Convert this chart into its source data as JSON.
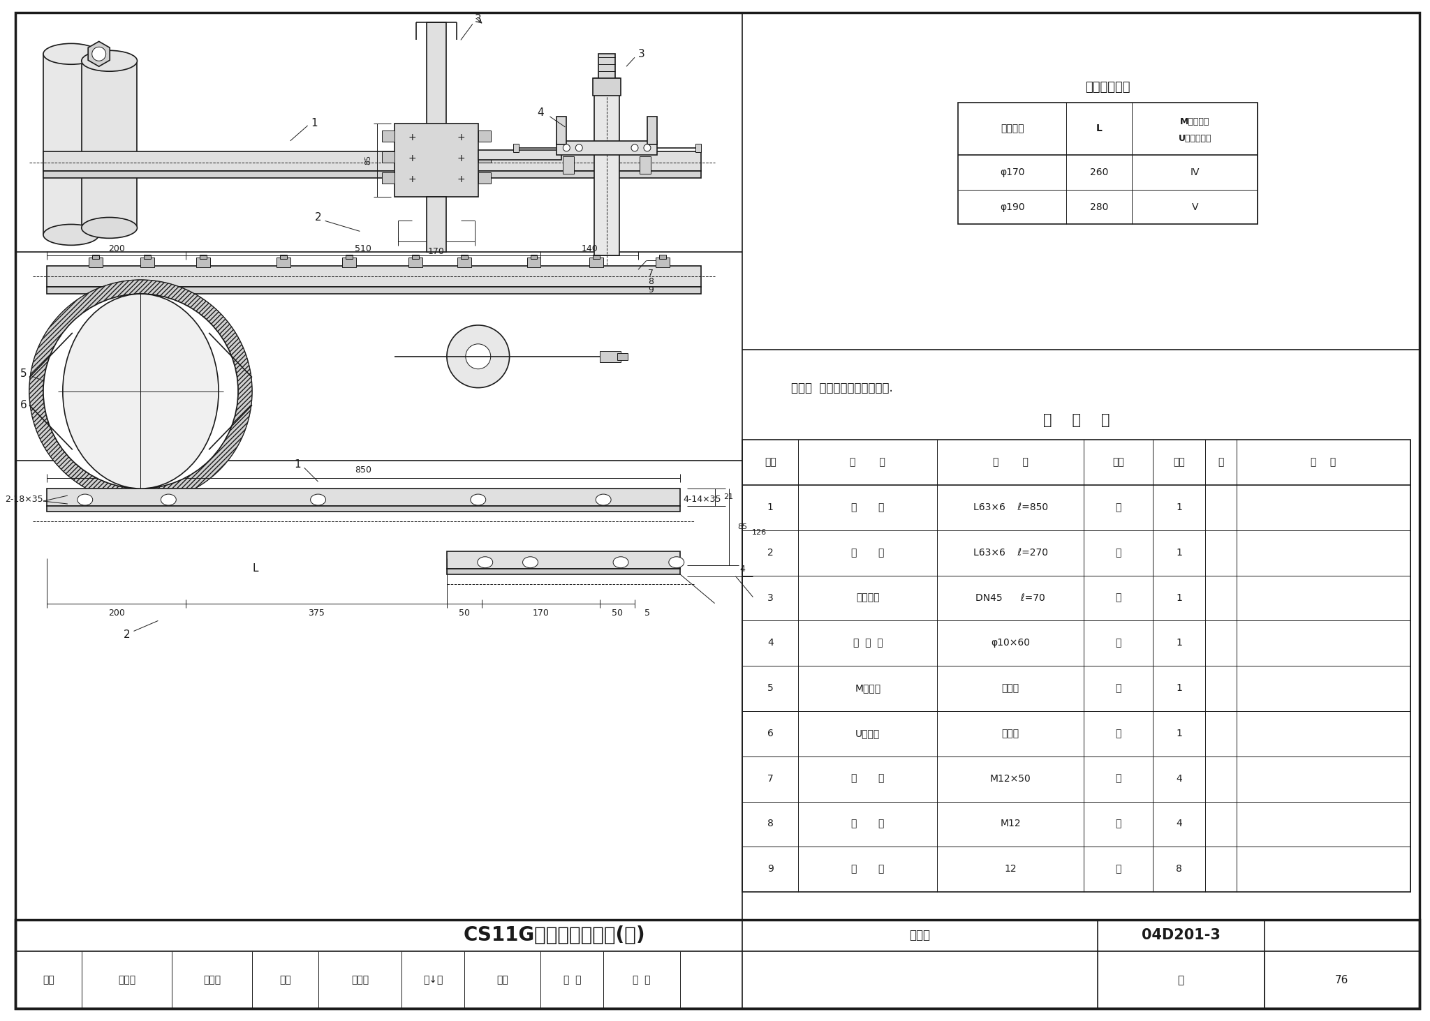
{
  "title": "CS11G操动机构安装图(二)",
  "fig_num": "04D201-3",
  "page": "76",
  "bg_color": "#ffffff",
  "line_color": "#1a1a1a",
  "table_title": "尺寸及型号表",
  "table_headers": [
    "电杆梢径",
    "L",
    "M形抱箍及\nU形抱箍型号"
  ],
  "table_rows": [
    [
      "φ170",
      "260",
      "IV"
    ],
    [
      "φ190",
      "280",
      "V"
    ]
  ],
  "material_table_title": "材    料    表",
  "material_headers": [
    "编号",
    "名       称",
    "规       格",
    "单位",
    "数量",
    "页",
    "备       注"
  ],
  "material_rows": [
    [
      "1",
      "角       钢",
      "L63×6    ℓ=850",
      "根",
      "1",
      "",
      ""
    ],
    [
      "2",
      "角       钢",
      "L63×6    ℓ=270",
      "根",
      "1",
      "",
      ""
    ],
    [
      "3",
      "无缝钢管",
      "DN45      ℓ=70",
      "根",
      "1",
      "",
      ""
    ],
    [
      "4",
      "圆  锥  销",
      "φ10×60",
      "个",
      "1",
      "",
      ""
    ],
    [
      "5",
      "M形抱铁",
      "见上表",
      "个",
      "1",
      "",
      ""
    ],
    [
      "6",
      "U形抱箍",
      "见上表",
      "付",
      "1",
      "",
      ""
    ],
    [
      "7",
      "螺       栓",
      "M12×50",
      "个",
      "4",
      "",
      ""
    ],
    [
      "8",
      "螺       母",
      "M12",
      "个",
      "4",
      "",
      ""
    ],
    [
      "9",
      "垫       圈",
      "12",
      "个",
      "8",
      "",
      ""
    ]
  ],
  "note": "附注：  各零件加工后应热镀锌.",
  "footer_items": [
    "审核",
    "吴他兴",
    "吴伯兴",
    "校对",
    "寻小华",
    "弓↓华",
    "设计",
    "李  并",
    "弓  并"
  ]
}
